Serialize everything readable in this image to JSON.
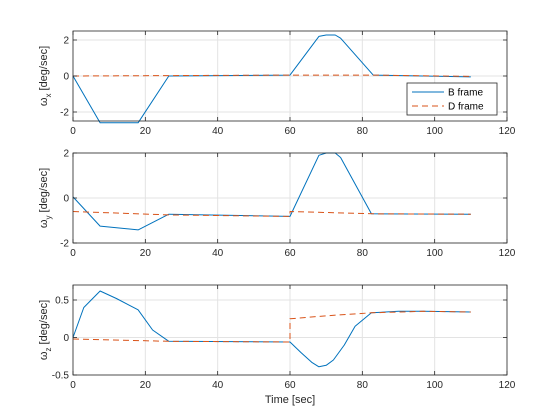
{
  "chart_data": [
    {
      "type": "line",
      "ylabel": "ω_x [deg/sec]",
      "ylabel_main": "ω",
      "ylabel_sub": "x",
      "ylabel_rest": " [deg/sec]",
      "xlabel": "",
      "xlim": [
        0,
        120
      ],
      "ylim": [
        -2.5,
        2.5
      ],
      "xticks": [
        0,
        20,
        40,
        60,
        80,
        100,
        120
      ],
      "yticks": [
        -2,
        0,
        2
      ],
      "grid": true,
      "legend": "bottom-right",
      "series": [
        {
          "name": "B frame",
          "color": "#0072BD",
          "style": "solid",
          "x": [
            0,
            7.5,
            18,
            26.5,
            60,
            68,
            70,
            72.5,
            74,
            83,
            110
          ],
          "y": [
            0,
            -2.6,
            -2.6,
            0,
            0.05,
            2.2,
            2.28,
            2.28,
            2.1,
            0.05,
            -0.05
          ]
        },
        {
          "name": "D frame",
          "color": "#D95319",
          "style": "dashed",
          "x": [
            0,
            26.5,
            60,
            83,
            110
          ],
          "y": [
            0,
            0.02,
            0.05,
            0.05,
            -0.02
          ]
        }
      ]
    },
    {
      "type": "line",
      "ylabel": "ω_y [deg/sec]",
      "ylabel_main": "ω",
      "ylabel_sub": "y",
      "ylabel_rest": " [deg/sec]",
      "xlabel": "",
      "xlim": [
        0,
        120
      ],
      "ylim": [
        -2,
        2
      ],
      "xticks": [
        0,
        20,
        40,
        60,
        80,
        100,
        120
      ],
      "yticks": [
        -2,
        0,
        2
      ],
      "grid": true,
      "legend": "",
      "series": [
        {
          "name": "",
          "color": "#0072BD",
          "style": "solid",
          "x": [
            0,
            7.5,
            18,
            26.5,
            60,
            68,
            70,
            72.5,
            74,
            82.5,
            110
          ],
          "y": [
            0.05,
            -1.25,
            -1.42,
            -0.72,
            -0.82,
            1.9,
            2.0,
            2.0,
            1.8,
            -0.7,
            -0.72
          ]
        },
        {
          "name": "",
          "color": "#D95319",
          "style": "dashed",
          "x": [
            0,
            26.5,
            60,
            60,
            83,
            110
          ],
          "y": [
            -0.6,
            -0.75,
            -0.82,
            -0.6,
            -0.7,
            -0.72
          ]
        }
      ]
    },
    {
      "type": "line",
      "ylabel": "ω_z [deg/sec]",
      "ylabel_main": "ω",
      "ylabel_sub": "z",
      "ylabel_rest": " [deg/sec]",
      "xlabel": "Time [sec]",
      "xlim": [
        0,
        120
      ],
      "ylim": [
        -0.5,
        0.7
      ],
      "xticks": [
        0,
        20,
        40,
        60,
        80,
        100,
        120
      ],
      "yticks": [
        -0.5,
        0,
        0.5
      ],
      "ytick_labels": [
        "-0.5",
        "0",
        "0.5"
      ],
      "grid": true,
      "legend": "",
      "series": [
        {
          "name": "",
          "color": "#0072BD",
          "style": "solid",
          "x": [
            0,
            3,
            7.5,
            12,
            18,
            22,
            26.5,
            60,
            63,
            66,
            68,
            70,
            72,
            75,
            78,
            82.5,
            90,
            97,
            110
          ],
          "y": [
            0,
            0.4,
            0.62,
            0.52,
            0.37,
            0.1,
            -0.05,
            -0.06,
            -0.2,
            -0.33,
            -0.39,
            -0.37,
            -0.3,
            -0.1,
            0.15,
            0.33,
            0.35,
            0.35,
            0.34
          ]
        },
        {
          "name": "",
          "color": "#D95319",
          "style": "dashed",
          "x": [
            0,
            26.5,
            60,
            60,
            70,
            82.5,
            97,
            110
          ],
          "y": [
            -0.02,
            -0.05,
            -0.06,
            0.25,
            0.29,
            0.33,
            0.35,
            0.34
          ]
        }
      ]
    }
  ]
}
